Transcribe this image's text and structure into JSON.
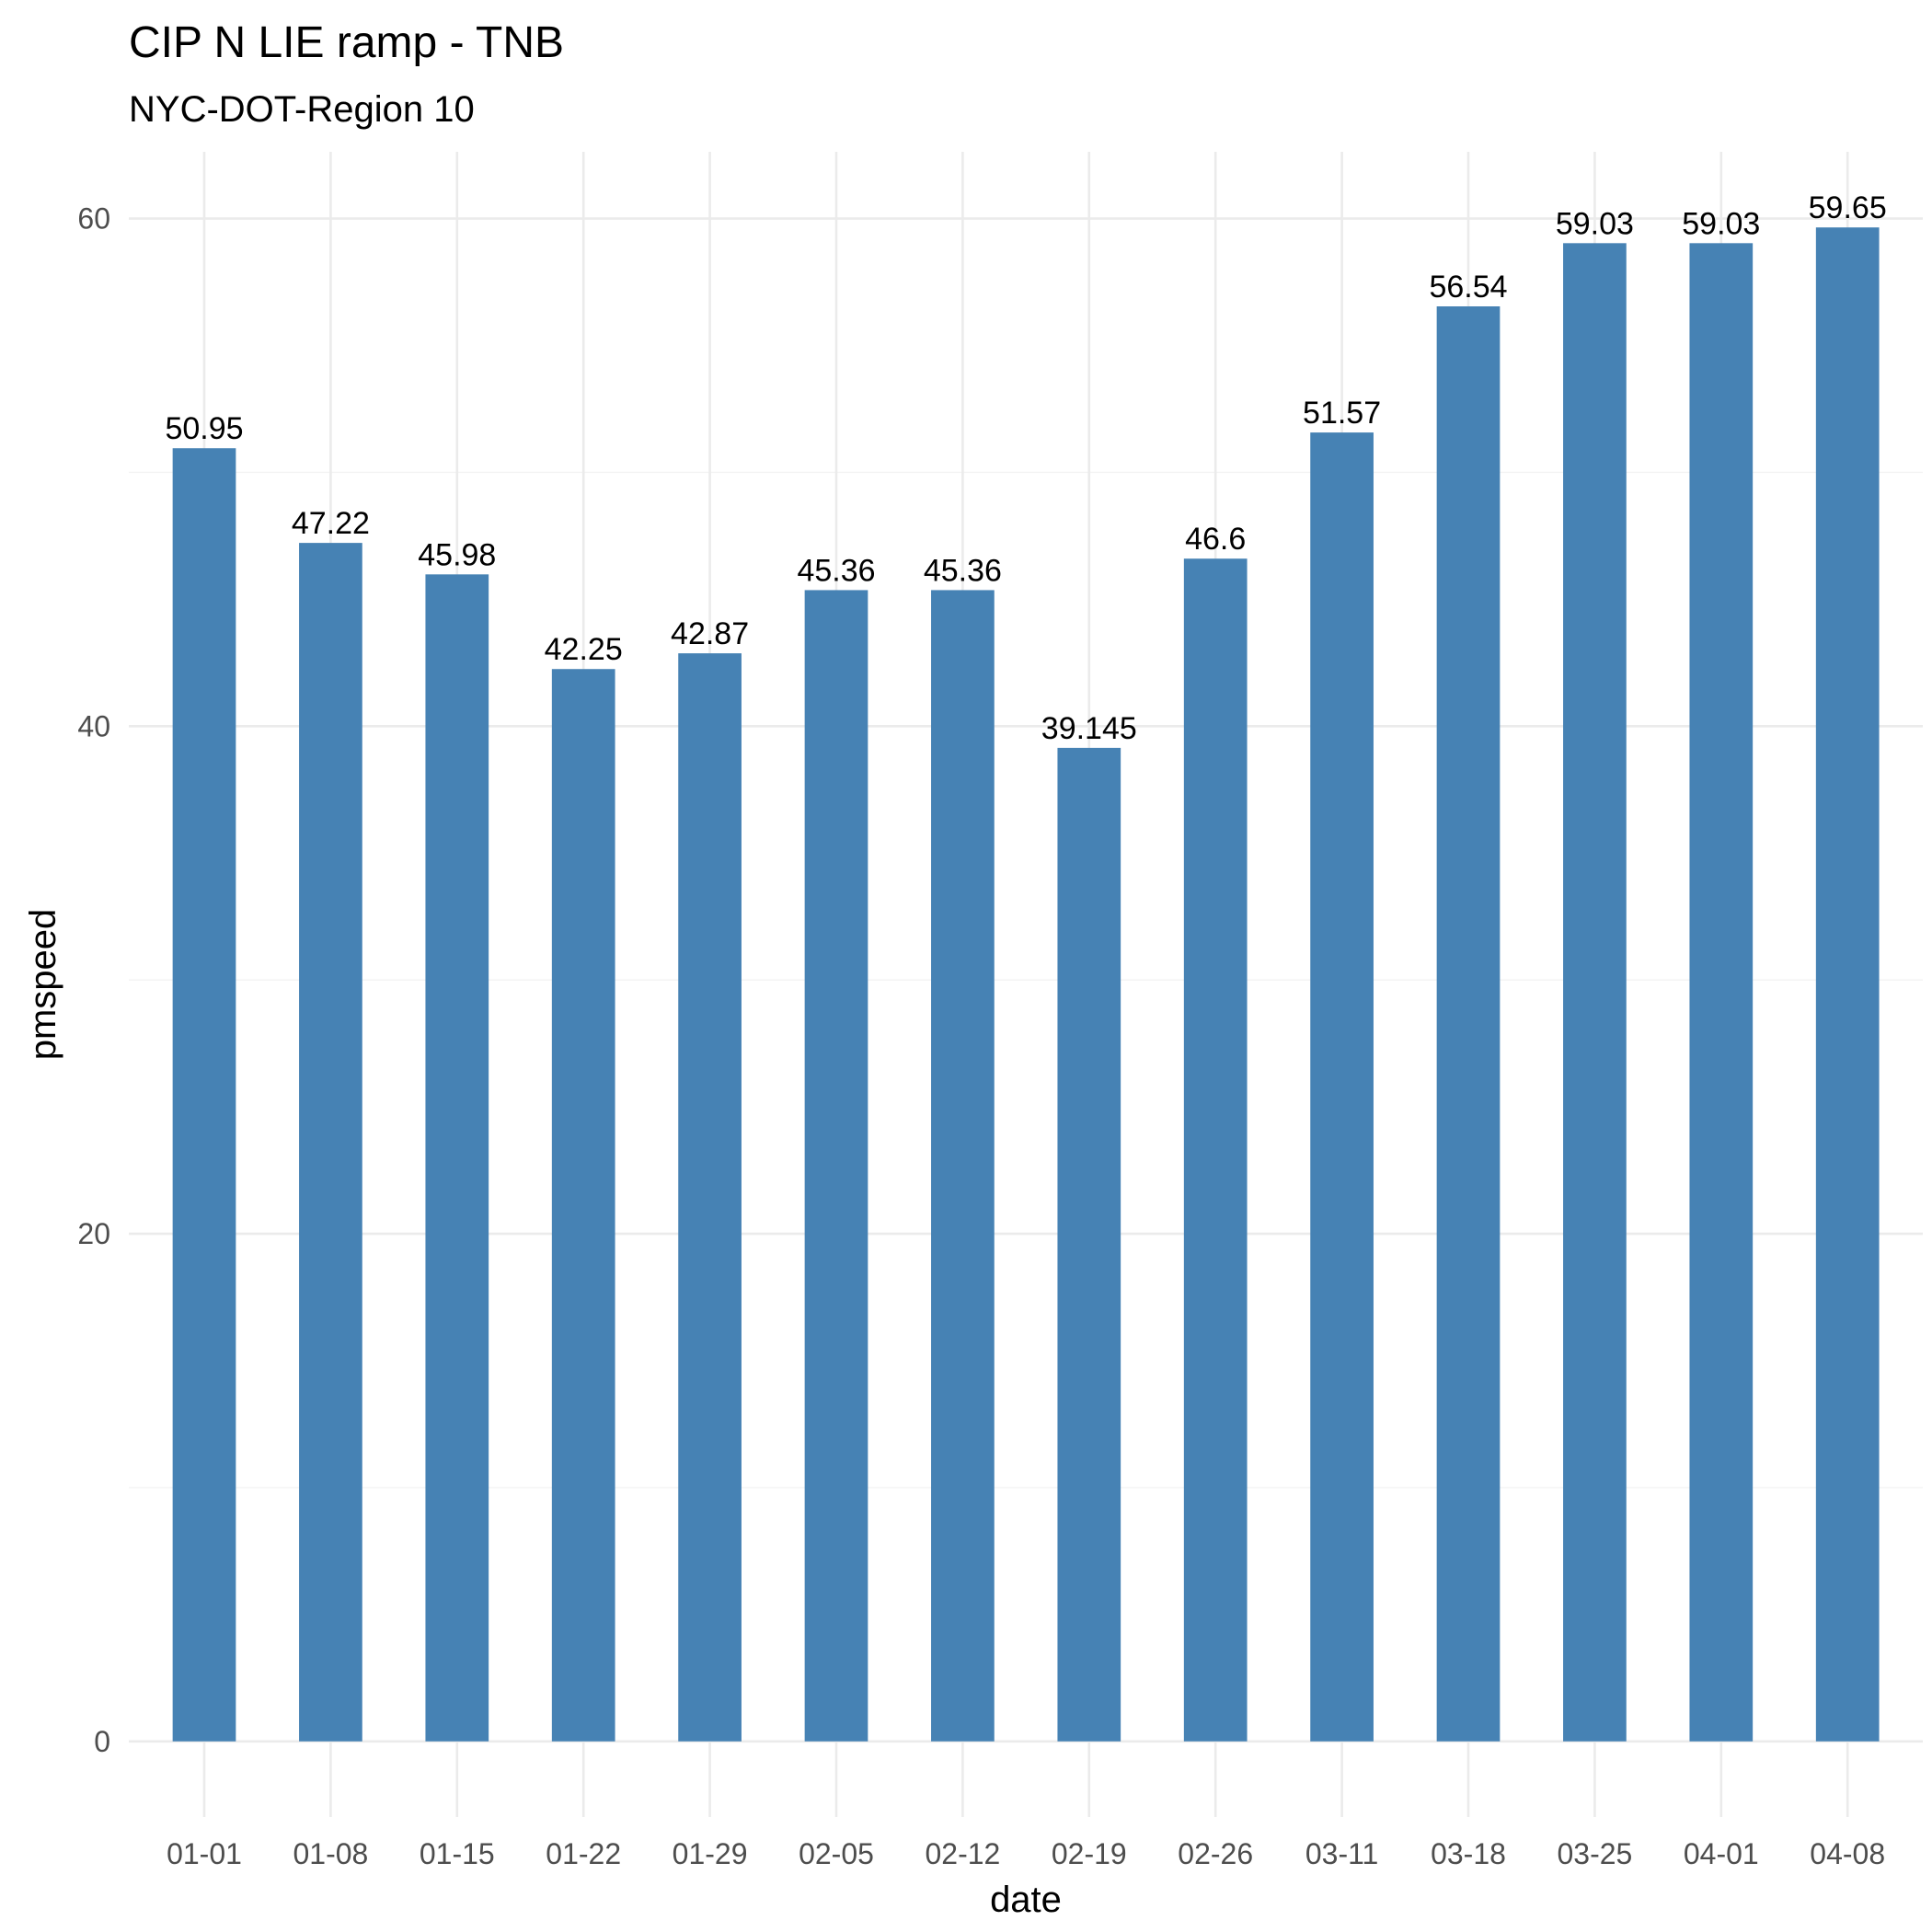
{
  "chart_data": {
    "type": "bar",
    "title": "CIP N LIE ramp - TNB",
    "subtitle": "NYC-DOT-Region 10",
    "xlabel": "date",
    "ylabel": "pmspeed",
    "categories": [
      "01-01",
      "01-08",
      "01-15",
      "01-22",
      "01-29",
      "02-05",
      "02-12",
      "02-19",
      "02-26",
      "03-11",
      "03-18",
      "03-25",
      "04-01",
      "04-08"
    ],
    "values": [
      50.95,
      47.22,
      45.98,
      42.25,
      42.87,
      45.36,
      45.36,
      39.145,
      46.6,
      51.57,
      56.54,
      59.03,
      59.03,
      59.65
    ],
    "value_labels": [
      "50.95",
      "47.22",
      "45.98",
      "42.25",
      "42.87",
      "45.36",
      "45.36",
      "39.145",
      "46.6",
      "51.57",
      "56.54",
      "59.03",
      "59.03",
      "59.65"
    ],
    "yticks": [
      0,
      20,
      40,
      60
    ],
    "ytick_labels": [
      "0",
      "20",
      "40",
      "60"
    ],
    "ylim": [
      -2.98,
      62.63
    ],
    "bar_color": "#4682b4",
    "grid": true,
    "legend": "none"
  }
}
